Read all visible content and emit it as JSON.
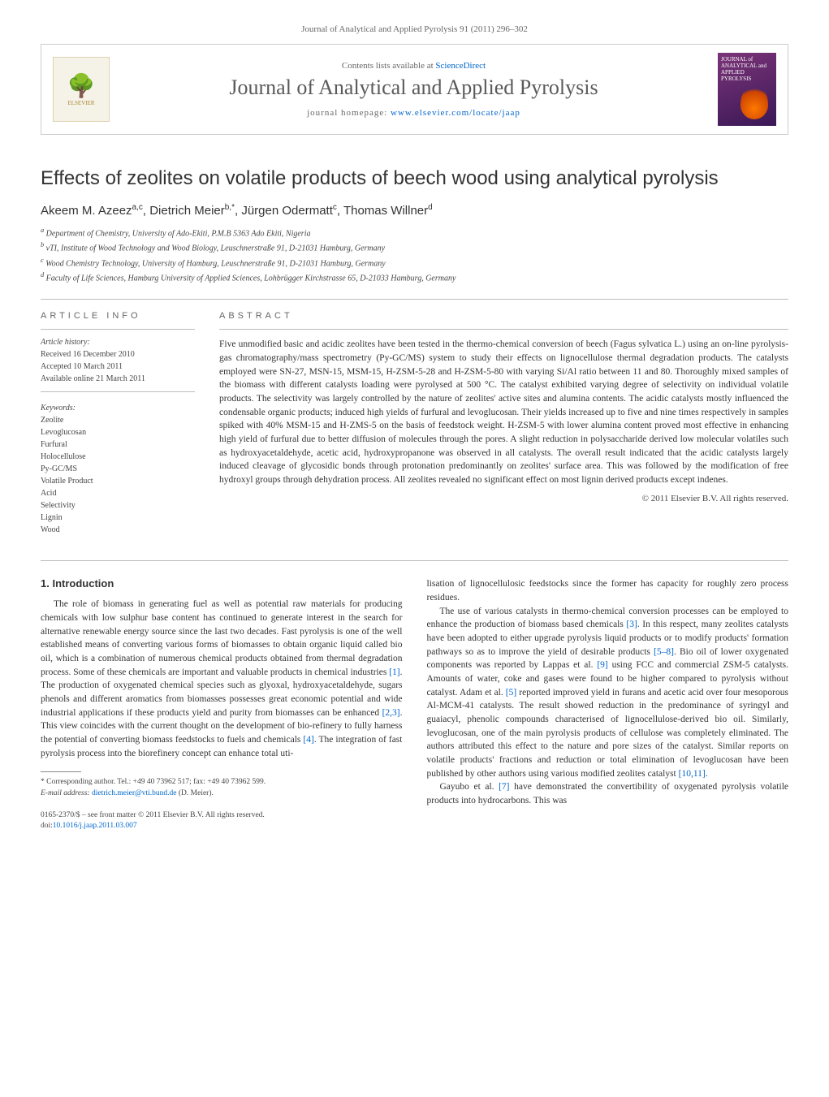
{
  "header": {
    "citation": "Journal of Analytical and Applied Pyrolysis 91 (2011) 296–302"
  },
  "banner": {
    "publisher_logo_text": "ELSEVIER",
    "contents_prefix": "Contents lists available at ",
    "contents_link": "ScienceDirect",
    "journal_name": "Journal of Analytical and Applied Pyrolysis",
    "homepage_prefix": "journal homepage: ",
    "homepage_url": "www.elsevier.com/locate/jaap",
    "cover_text": "JOURNAL of ANALYTICAL and APPLIED PYROLYSIS"
  },
  "article": {
    "title": "Effects of zeolites on volatile products of beech wood using analytical pyrolysis",
    "authors_html": "Akeem M. Azeez<sup>a,c</sup>, Dietrich Meier<sup>b,*</sup>, Jürgen Odermatt<sup>c</sup>, Thomas Willner<sup>d</sup>",
    "affiliations": [
      "a Department of Chemistry, University of Ado-Ekiti, P.M.B 5363 Ado Ekiti, Nigeria",
      "b vTI, Institute of Wood Technology and Wood Biology, Leuschnerstraße 91, D-21031 Hamburg, Germany",
      "c Wood Chemistry Technology, University of Hamburg, Leuschnerstraße 91, D-21031 Hamburg, Germany",
      "d Faculty of Life Sciences, Hamburg University of Applied Sciences, Lohbrügger Kirchstrasse 65, D-21033 Hamburg, Germany"
    ]
  },
  "info": {
    "section_label": "article info",
    "history_label": "Article history:",
    "received": "Received 16 December 2010",
    "accepted": "Accepted 10 March 2011",
    "online": "Available online 21 March 2011",
    "keywords_label": "Keywords:",
    "keywords": [
      "Zeolite",
      "Levoglucosan",
      "Furfural",
      "Holocellulose",
      "Py-GC/MS",
      "Volatile Product",
      "Acid",
      "Selectivity",
      "Lignin",
      "Wood"
    ]
  },
  "abstract": {
    "section_label": "abstract",
    "text": "Five unmodified basic and acidic zeolites have been tested in the thermo-chemical conversion of beech (Fagus sylvatica L.) using an on-line pyrolysis-gas chromatography/mass spectrometry (Py-GC/MS) system to study their effects on lignocellulose thermal degradation products. The catalysts employed were SN-27, MSN-15, MSM-15, H-ZSM-5-28 and H-ZSM-5-80 with varying Si/Al ratio between 11 and 80. Thoroughly mixed samples of the biomass with different catalysts loading were pyrolysed at 500 °C. The catalyst exhibited varying degree of selectivity on individual volatile products. The selectivity was largely controlled by the nature of zeolites' active sites and alumina contents. The acidic catalysts mostly influenced the condensable organic products; induced high yields of furfural and levoglucosan. Their yields increased up to five and nine times respectively in samples spiked with 40% MSM-15 and H-ZMS-5 on the basis of feedstock weight. H-ZSM-5 with lower alumina content proved most effective in enhancing high yield of furfural due to better diffusion of molecules through the pores. A slight reduction in polysaccharide derived low molecular volatiles such as hydroxyacetaldehyde, acetic acid, hydroxypropanone was observed in all catalysts. The overall result indicated that the acidic catalysts largely induced cleavage of glycosidic bonds through protonation predominantly on zeolites' surface area. This was followed by the modification of free hydroxyl groups through dehydration process. All zeolites revealed no significant effect on most lignin derived products except indenes.",
    "copyright": "© 2011 Elsevier B.V. All rights reserved."
  },
  "body": {
    "intro_heading": "1. Introduction",
    "col1_p1": "The role of biomass in generating fuel as well as potential raw materials for producing chemicals with low sulphur base content has continued to generate interest in the search for alternative renewable energy source since the last two decades. Fast pyrolysis is one of the well established means of converting various forms of biomasses to obtain organic liquid called bio oil, which is a combination of numerous chemical products obtained from thermal degradation process. Some of these chemicals are important and valuable products in chemical industries [1]. The production of oxygenated chemical species such as glyoxal, hydroxyacetaldehyde, sugars phenols and different aromatics from biomasses possesses great economic potential and wide industrial applications if these products yield and purity from biomasses can be enhanced [2,3]. This view coincides with the current thought on the development of bio-refinery to fully harness the potential of converting biomass feedstocks to fuels and chemicals [4]. The integration of fast pyrolysis process into the biorefinery concept can enhance total uti-",
    "col2_p1": "lisation of lignocellulosic feedstocks since the former has capacity for roughly zero process residues.",
    "col2_p2": "The use of various catalysts in thermo-chemical conversion processes can be employed to enhance the production of biomass based chemicals [3]. In this respect, many zeolites catalysts have been adopted to either upgrade pyrolysis liquid products or to modify products' formation pathways so as to improve the yield of desirable products [5–8]. Bio oil of lower oxygenated components was reported by Lappas et al. [9] using FCC and commercial ZSM-5 catalysts. Amounts of water, coke and gases were found to be higher compared to pyrolysis without catalyst. Adam et al. [5] reported improved yield in furans and acetic acid over four mesoporous Al-MCM-41 catalysts. The result showed reduction in the predominance of syringyl and guaiacyl, phenolic compounds characterised of lignocellulose-derived bio oil. Similarly, levoglucosan, one of the main pyrolysis products of cellulose was completely eliminated. The authors attributed this effect to the nature and pore sizes of the catalyst. Similar reports on volatile products' fractions and reduction or total elimination of levoglucosan have been published by other authors using various modified zeolites catalyst [10,11].",
    "col2_p3": "Gayubo et al. [7] have demonstrated the convertibility of oxygenated pyrolysis volatile products into hydrocarbons. This was"
  },
  "footnote": {
    "corr_label": "* Corresponding author. Tel.: +49 40 73962 517; fax: +49 40 73962 599.",
    "email_label": "E-mail address: ",
    "email": "dietrich.meier@vti.bund.de",
    "email_suffix": " (D. Meier)."
  },
  "footer": {
    "front_matter": "0165-2370/$ – see front matter © 2011 Elsevier B.V. All rights reserved.",
    "doi_prefix": "doi:",
    "doi": "10.1016/j.jaap.2011.03.007"
  },
  "colors": {
    "link": "#0066cc",
    "text": "#333333",
    "muted": "#666666",
    "border": "#bbbbbb"
  }
}
